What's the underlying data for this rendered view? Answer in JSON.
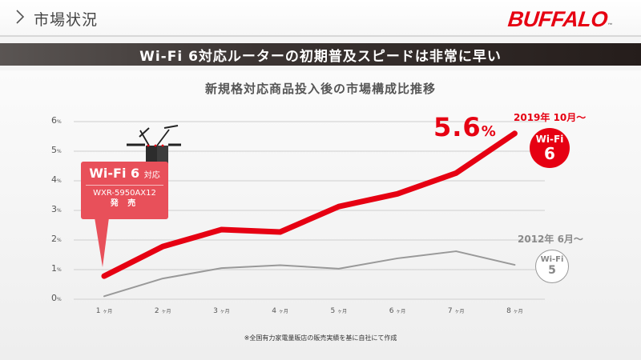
{
  "header": {
    "breadcrumb_icon": "chevron-right-icon",
    "breadcrumb": "市場状況",
    "logo": "BUFFALO",
    "logo_tm": "™"
  },
  "banner": {
    "headline": "Wi-Fi 6対応ルーターの初期普及スピードは非常に早い"
  },
  "colors": {
    "wifi6": "#e60012",
    "wifi5": "#999999",
    "callout": "#e8505a",
    "banner_dark": "#251d1b",
    "grid": "#d6d6d6"
  },
  "callout": {
    "title": "Wi-Fi 6",
    "title_suffix": "対応",
    "model": "WXR-5950AX12",
    "action": "発 売",
    "icon": "router-icon"
  },
  "annotations": {
    "peak_value": "5.6",
    "peak_unit": "%",
    "wifi6_date": "2019年 10月～",
    "wifi6_badge_top": "Wi-Fi",
    "wifi6_badge_num": "6",
    "wifi5_date": "2012年 6月～",
    "wifi5_badge_top": "Wi-Fi",
    "wifi5_badge_num": "5"
  },
  "footnote": "※全国有力家電量販店の販売実績を基に自社にて作成",
  "chart_data": {
    "type": "line",
    "title": "新規格対応商品投入後の市場構成比推移",
    "xlabel": "",
    "ylabel": "",
    "categories": [
      "1ヶ月",
      "2ヶ月",
      "3ヶ月",
      "4ヶ月",
      "5ヶ月",
      "6ヶ月",
      "7ヶ月",
      "8ヶ月"
    ],
    "x_ticks": [
      {
        "n": "1",
        "u": "ヶ月"
      },
      {
        "n": "2",
        "u": "ヶ月"
      },
      {
        "n": "3",
        "u": "ヶ月"
      },
      {
        "n": "4",
        "u": "ヶ月"
      },
      {
        "n": "5",
        "u": "ヶ月"
      },
      {
        "n": "6",
        "u": "ヶ月"
      },
      {
        "n": "7",
        "u": "ヶ月"
      },
      {
        "n": "8",
        "u": "ヶ月"
      }
    ],
    "y_ticks": [
      {
        "n": "0",
        "u": "%"
      },
      {
        "n": "1",
        "u": "%"
      },
      {
        "n": "2",
        "u": "%"
      },
      {
        "n": "3",
        "u": "%"
      },
      {
        "n": "4",
        "u": "%"
      },
      {
        "n": "5",
        "u": "%"
      },
      {
        "n": "6",
        "u": "%"
      }
    ],
    "ylim": [
      0,
      6
    ],
    "grid": true,
    "series": [
      {
        "name": "Wi-Fi 6 (2019年10月～)",
        "values": [
          0.78,
          1.78,
          2.35,
          2.27,
          3.13,
          3.56,
          4.26,
          5.6
        ],
        "color": "#e60012"
      },
      {
        "name": "Wi-Fi 5 (2012年6月～)",
        "values": [
          0.1,
          0.7,
          1.05,
          1.15,
          1.03,
          1.38,
          1.62,
          1.16
        ],
        "color": "#999999"
      }
    ]
  }
}
